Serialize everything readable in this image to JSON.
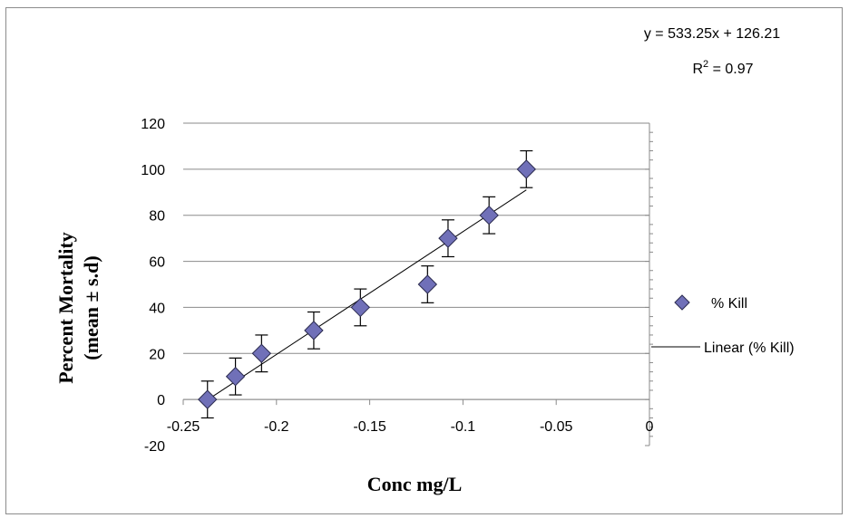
{
  "chart_data": {
    "type": "scatter",
    "xlabel": "Conc mg/L",
    "ylabel_line1": "Percent Mortality",
    "ylabel_line2": "(mean ± s.d)",
    "xlim": [
      -0.25,
      0
    ],
    "ylim": [
      -20,
      120
    ],
    "x_ticks": [
      -0.25,
      -0.2,
      -0.15,
      -0.1,
      -0.05,
      0
    ],
    "x_tick_labels": [
      "-0.25",
      "-0.2",
      "-0.15",
      "-0.1",
      "-0.05",
      "0"
    ],
    "y_ticks": [
      -20,
      0,
      20,
      40,
      60,
      80,
      100,
      120
    ],
    "y_tick_labels": [
      "-20",
      "0",
      "20",
      "40",
      "60",
      "80",
      "100",
      "120"
    ],
    "grid": "horizontal major",
    "legend_position": "right",
    "series": [
      {
        "name": "% Kill",
        "marker": "diamond",
        "color": "#7070b8",
        "points": [
          {
            "x": -0.237,
            "y": 0,
            "err": 8
          },
          {
            "x": -0.222,
            "y": 10,
            "err": 8
          },
          {
            "x": -0.208,
            "y": 20,
            "err": 8
          },
          {
            "x": -0.18,
            "y": 30,
            "err": 8
          },
          {
            "x": -0.155,
            "y": 40,
            "err": 8
          },
          {
            "x": -0.119,
            "y": 50,
            "err": 8
          },
          {
            "x": -0.108,
            "y": 70,
            "err": 8
          },
          {
            "x": -0.086,
            "y": 80,
            "err": 8
          },
          {
            "x": -0.066,
            "y": 100,
            "err": 8
          }
        ]
      }
    ],
    "trendline": {
      "name": "Linear (% Kill)",
      "slope": 533.25,
      "intercept": 126.21,
      "x_range": [
        -0.237,
        -0.066
      ],
      "equation": "y = 533.25x + 126.21",
      "r2_label": "R",
      "r2_sup": "2",
      "r2_value": " = 0.97"
    }
  }
}
